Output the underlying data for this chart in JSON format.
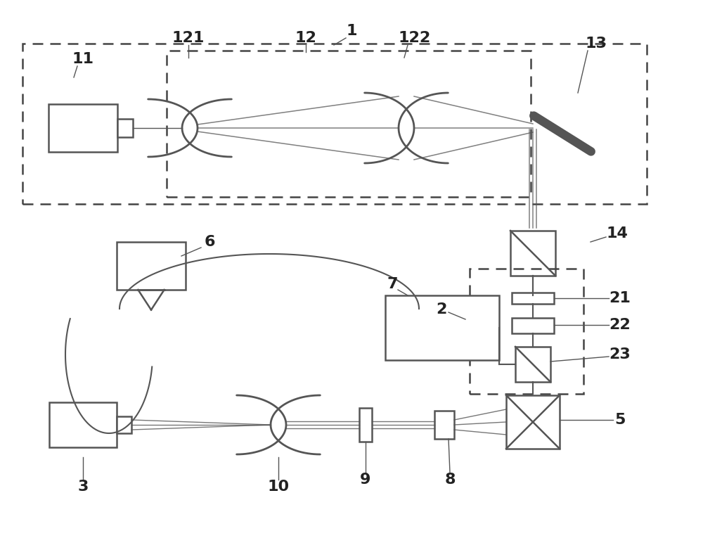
{
  "bg_color": "#ffffff",
  "lc": "#555555",
  "dc": "#444444",
  "lbc": "#222222",
  "fs": 16,
  "fw": "bold",
  "fig_w": 10.0,
  "fig_h": 7.82
}
